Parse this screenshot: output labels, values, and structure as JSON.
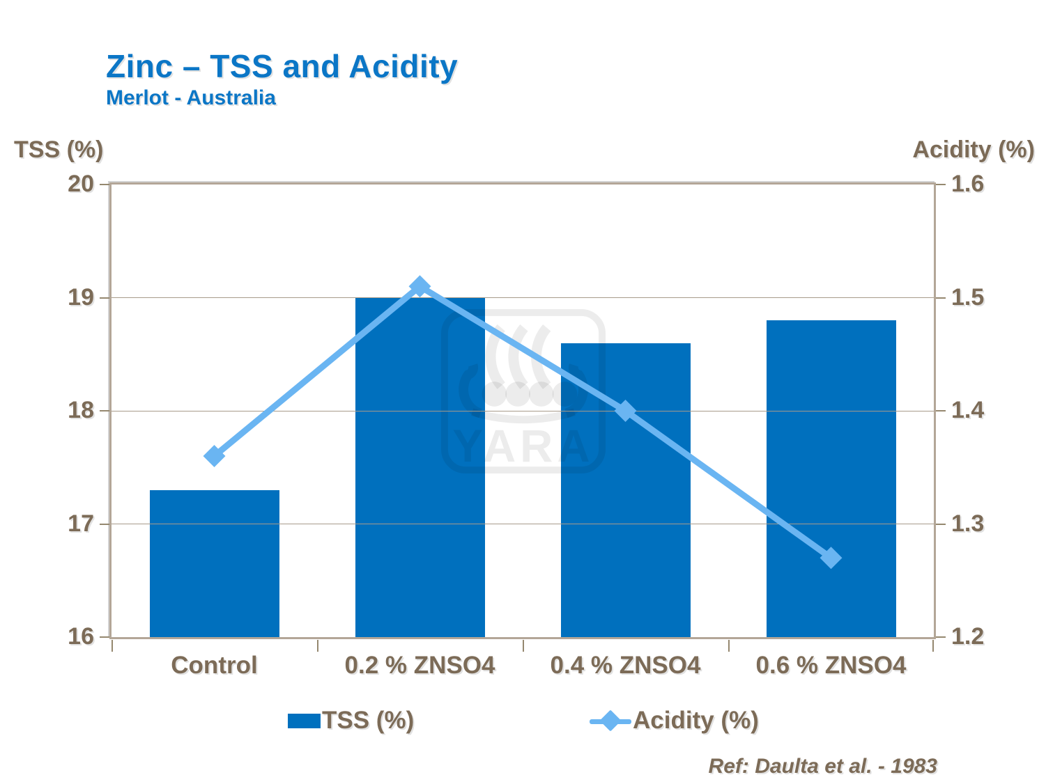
{
  "slide": {
    "title": "Zinc – TSS and Acidity",
    "subtitle": "Merlot - Australia",
    "reference": "Ref: Daulta et al. - 1983",
    "watermark": "YARA"
  },
  "colors": {
    "title_blue": "#0B76C6",
    "bar_blue": "#0070BE",
    "line_blue": "#6AB5F2",
    "text_brown": "#7C6B57",
    "frame_tan": "#B3A697",
    "gridline": "#A79A8A"
  },
  "chart_data": {
    "type": "bar",
    "subtype": "bar-line-combo",
    "categories": [
      "Control",
      "0.2 % ZNSO4",
      "0.4 % ZNSO4",
      "0.6 % ZNSO4"
    ],
    "series": [
      {
        "name": "TSS (%)",
        "type": "bar",
        "axis": "left",
        "values": [
          17.3,
          19.0,
          18.6,
          18.8
        ],
        "color": "#0070BE"
      },
      {
        "name": "Acidity (%)",
        "type": "line",
        "axis": "right",
        "values": [
          1.36,
          1.51,
          1.4,
          1.27
        ],
        "color": "#6AB5F2",
        "marker": "diamond"
      }
    ],
    "left_axis": {
      "title": "TSS (%)",
      "min": 16,
      "max": 20,
      "ticks": [
        20,
        19,
        18,
        17,
        16
      ]
    },
    "right_axis": {
      "title": "Acidity (%)",
      "min": 1.2,
      "max": 1.6,
      "ticks": [
        1.6,
        1.5,
        1.4,
        1.3,
        1.2
      ]
    },
    "grid": true,
    "legend_position": "bottom",
    "annotations": [
      "Ref: Daulta et al. - 1983"
    ]
  }
}
